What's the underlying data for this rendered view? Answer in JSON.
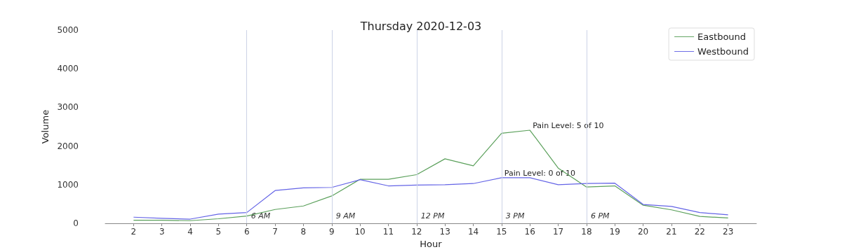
{
  "chart_data": {
    "type": "line",
    "title": "Thursday 2020-12-03",
    "xlabel": "Hour",
    "ylabel": "Volume",
    "x": [
      2,
      3,
      4,
      5,
      6,
      7,
      8,
      9,
      10,
      11,
      12,
      13,
      14,
      15,
      16,
      17,
      18,
      19,
      20,
      21,
      22,
      23
    ],
    "series": [
      {
        "name": "Eastbound",
        "color": "#5ba05b",
        "values": [
          80,
          80,
          70,
          120,
          190,
          360,
          450,
          710,
          1140,
          1140,
          1260,
          1670,
          1490,
          2330,
          2410,
          1430,
          940,
          970,
          470,
          350,
          180,
          140
        ]
      },
      {
        "name": "Westbound",
        "color": "#6464e6",
        "values": [
          160,
          130,
          110,
          240,
          280,
          850,
          920,
          930,
          1130,
          970,
          990,
          1000,
          1030,
          1180,
          1180,
          1000,
          1030,
          1040,
          490,
          440,
          280,
          220
        ]
      }
    ],
    "xlim": [
      1,
      24
    ],
    "xticks": [
      2,
      3,
      4,
      5,
      6,
      7,
      8,
      9,
      10,
      11,
      12,
      13,
      14,
      15,
      16,
      17,
      18,
      19,
      20,
      21,
      22,
      23
    ],
    "ylim": [
      0,
      5000
    ],
    "yticks": [
      0,
      1000,
      2000,
      3000,
      4000,
      5000
    ],
    "ref_lines": [
      {
        "axis": "x",
        "value": 6,
        "label": "6 AM",
        "color": "#ccd3e6"
      },
      {
        "axis": "x",
        "value": 9,
        "label": "9 AM",
        "color": "#ccd3e6"
      },
      {
        "axis": "x",
        "value": 12,
        "label": "12 PM",
        "color": "#ccd3e6"
      },
      {
        "axis": "x",
        "value": 15,
        "label": "3 PM",
        "color": "#ccd3e6"
      },
      {
        "axis": "x",
        "value": 18,
        "label": "6 PM",
        "color": "#ccd3e6"
      }
    ],
    "annotations": [
      {
        "text": "Pain Level: 5 of 10",
        "x": 16,
        "y": 2410
      },
      {
        "text": "Pain Level: 0 of 10",
        "x": 15,
        "y": 1180
      }
    ],
    "grid": false,
    "legend": "top right",
    "marker": "none",
    "line_style": "solid"
  }
}
